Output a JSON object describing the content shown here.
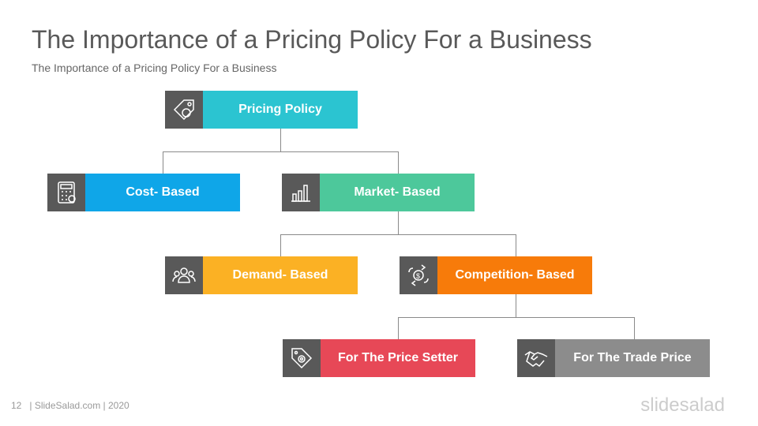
{
  "title": "The Importance of a Pricing Policy For a Business",
  "subtitle": "The Importance of a Pricing Policy For a Business",
  "nodes": [
    {
      "label": "Pricing Policy",
      "color": "#2BC4D1",
      "icon": "price-tag-shield-icon"
    },
    {
      "label": "Cost- Based",
      "color": "#0FA6E8",
      "icon": "calculator-icon"
    },
    {
      "label": "Market- Based",
      "color": "#4DC89B",
      "icon": "bar-chart-icon"
    },
    {
      "label": "Demand- Based",
      "color": "#FBB124",
      "icon": "people-group-icon"
    },
    {
      "label": "Competition- Based",
      "color": "#F77B0A",
      "icon": "money-exchange-icon"
    },
    {
      "label": "For The Price  Setter",
      "color": "#E74857",
      "icon": "tag-gear-icon"
    },
    {
      "label": "For The Trade Price",
      "color": "#8C8C8C",
      "icon": "handshake-icon"
    }
  ],
  "footer": {
    "page": "12",
    "text": "| SlideSalad.com | 2020"
  },
  "brand": "slidesalad"
}
